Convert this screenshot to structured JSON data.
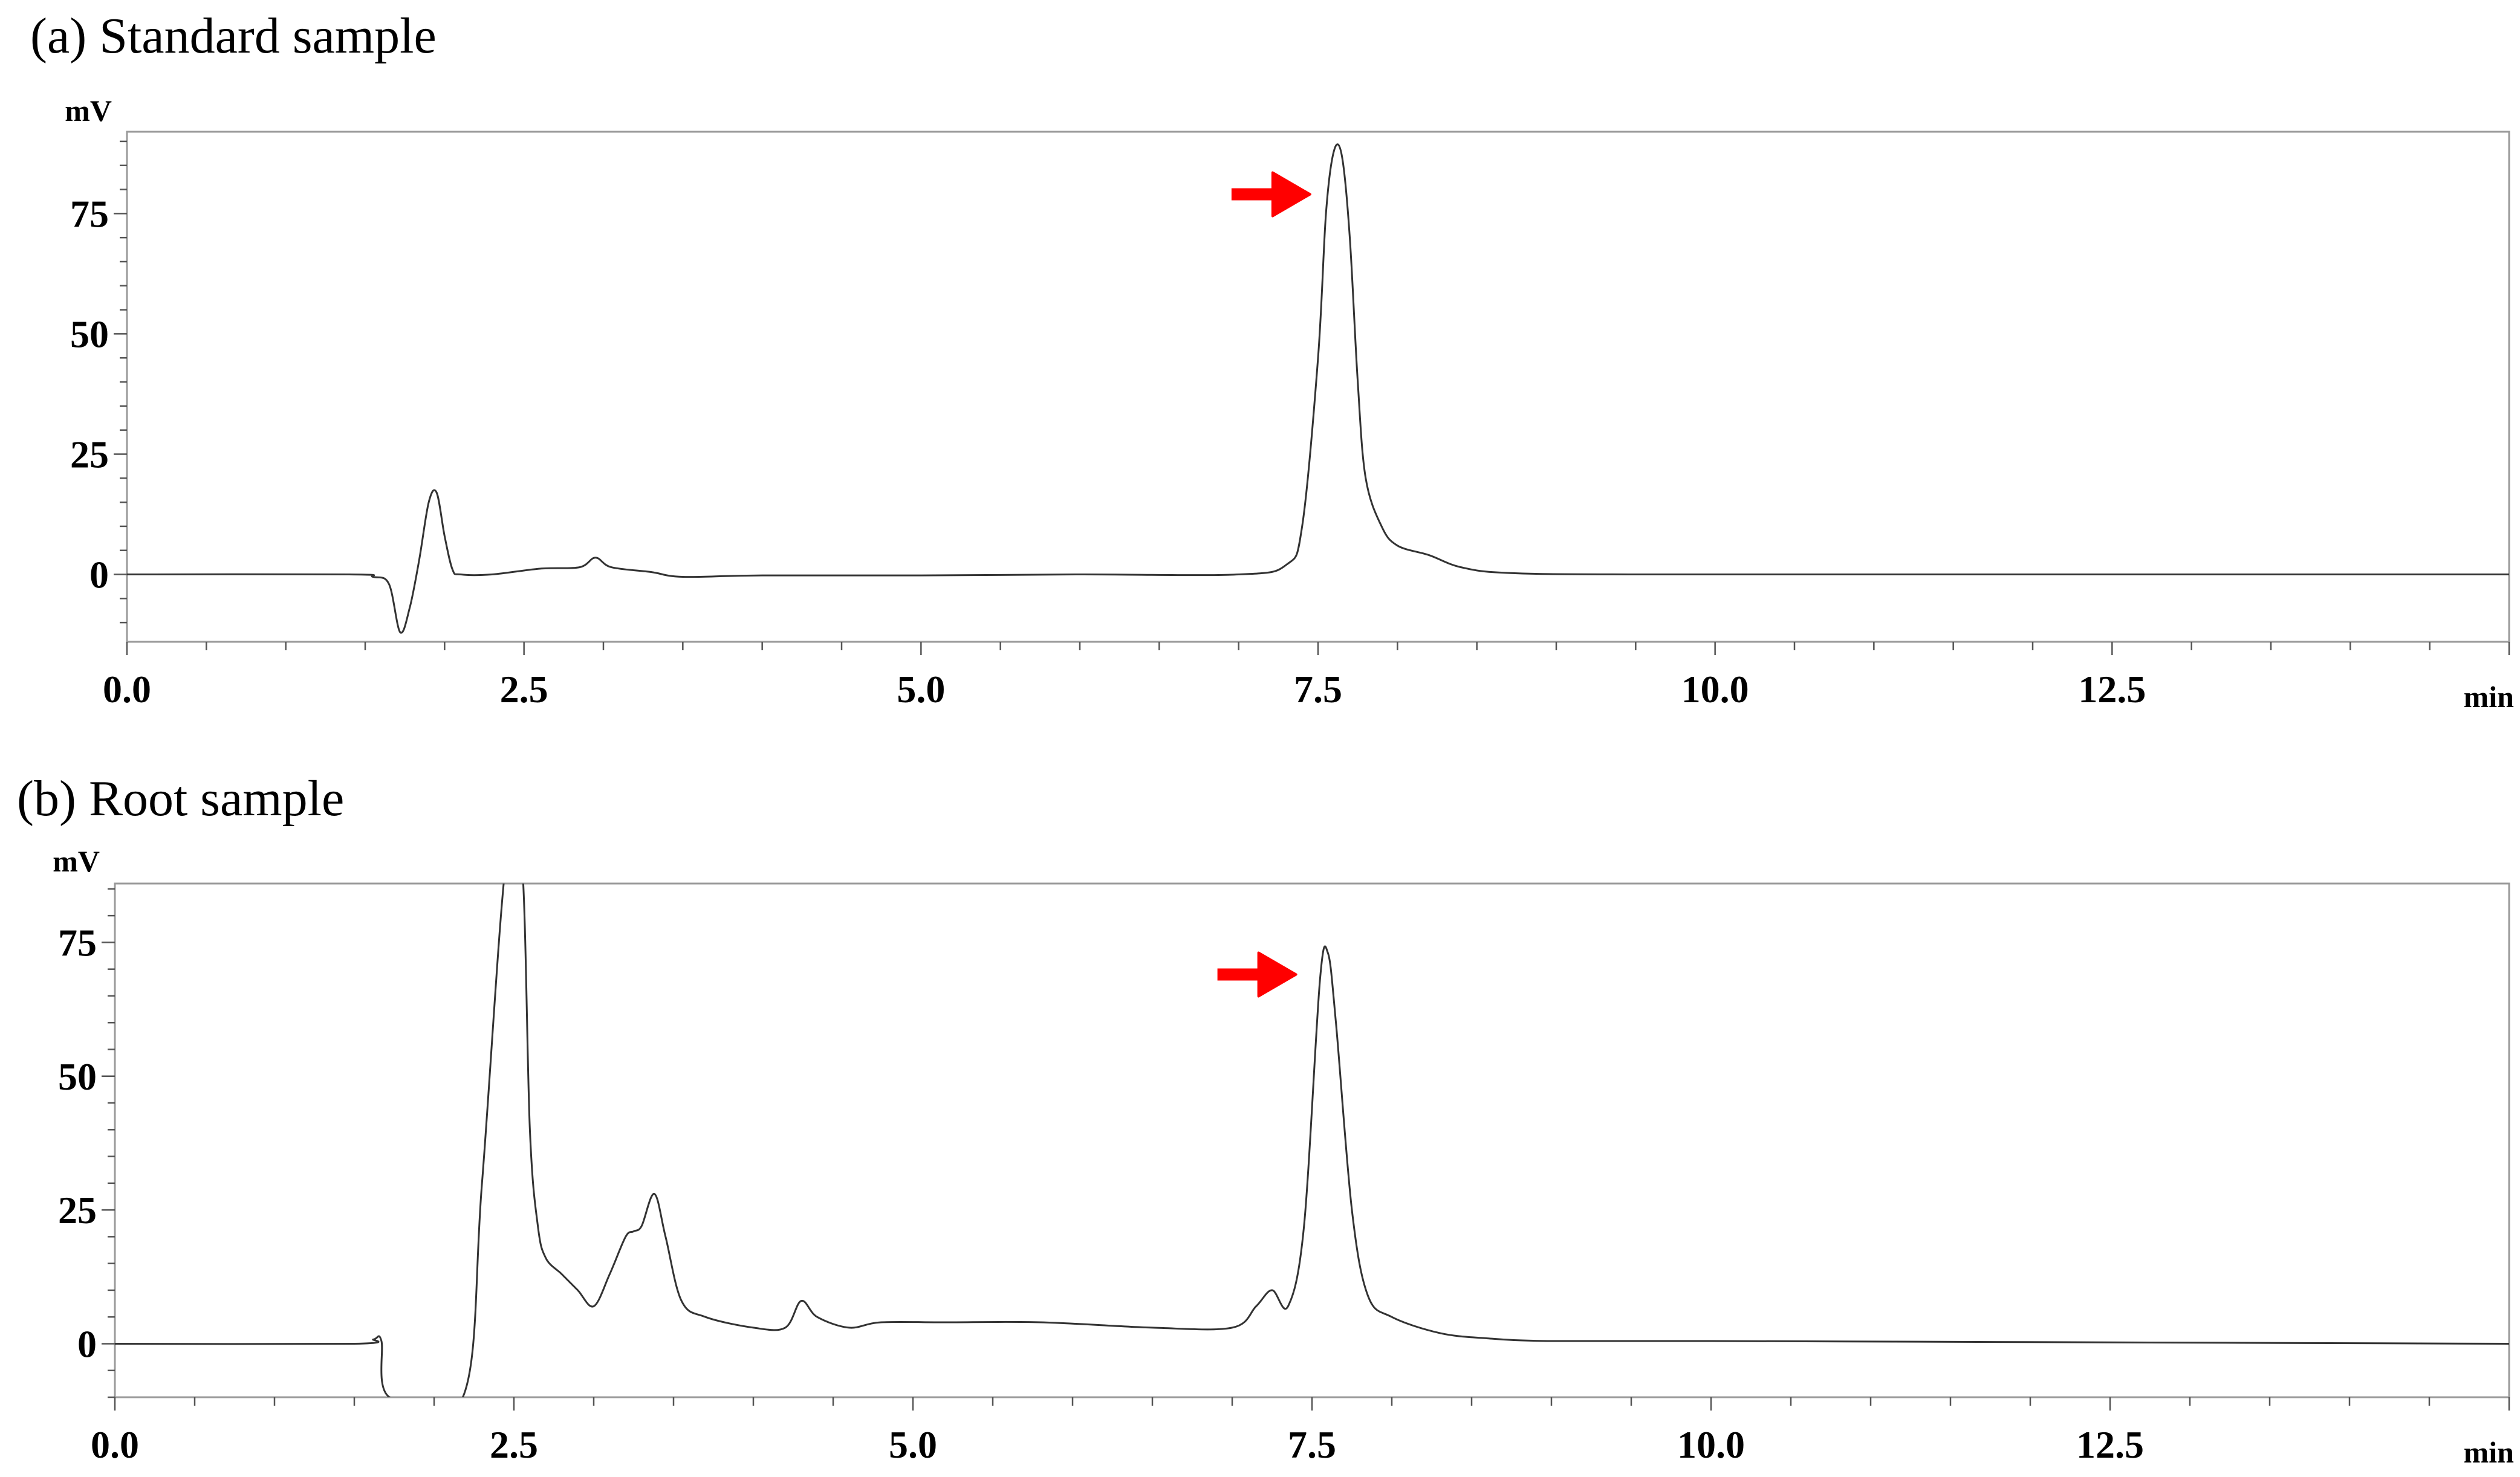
{
  "chart_data": [
    {
      "type": "line",
      "panel_title": "(a) Standard sample",
      "ylabel": "mV",
      "xlabel": "min",
      "xlim": [
        0,
        15
      ],
      "ylim": [
        -14,
        92
      ],
      "x_ticks": [
        0.0,
        2.5,
        5.0,
        7.5,
        10.0,
        12.5
      ],
      "x_tick_labels": [
        "0.0",
        "2.5",
        "5.0",
        "7.5",
        "10.0",
        "12.5"
      ],
      "y_ticks": [
        0,
        25,
        50,
        75
      ],
      "y_tick_labels": [
        "0",
        "25",
        "50",
        "75"
      ],
      "series_color": "#333333",
      "annotation": {
        "type": "arrow",
        "color": "#ff0000",
        "x": 7.45,
        "y": 79
      },
      "series": [
        {
          "x": [
            0,
            1.4,
            1.55,
            1.65,
            1.72,
            1.78,
            1.84,
            1.9,
            1.95,
            2.0,
            2.05,
            2.1,
            2.3,
            2.6,
            2.85,
            2.95,
            3.05,
            3.3,
            3.5,
            4.0,
            5.0,
            6.0,
            7.0,
            7.3,
            7.4,
            7.5,
            7.55,
            7.6,
            7.65,
            7.7,
            7.75,
            7.8,
            7.9,
            8.0,
            8.2,
            8.4,
            8.7,
            9.5,
            12,
            15
          ],
          "y": [
            0,
            0,
            -0.5,
            -2,
            -12,
            -7,
            3,
            15,
            17,
            8,
            1,
            0,
            0,
            1.2,
            1.5,
            3.5,
            1.5,
            0.5,
            -0.5,
            -0.2,
            -0.2,
            0,
            0,
            2,
            10,
            45,
            75,
            88,
            87,
            70,
            40,
            20,
            10,
            6,
            4,
            1.5,
            0.3,
            0,
            0,
            0
          ]
        }
      ]
    },
    {
      "type": "line",
      "panel_title": "(b) Root sample",
      "ylabel": "mV",
      "xlabel": "min",
      "xlim": [
        0,
        15
      ],
      "ylim": [
        -10,
        86
      ],
      "x_ticks": [
        0.0,
        2.5,
        5.0,
        7.5,
        10.0,
        12.5
      ],
      "x_tick_labels": [
        "0.0",
        "2.5",
        "5.0",
        "7.5",
        "10.0",
        "12.5"
      ],
      "y_ticks": [
        0,
        25,
        50,
        75
      ],
      "y_tick_labels": [
        "0",
        "25",
        "50",
        "75"
      ],
      "series_color": "#333333",
      "annotation": {
        "type": "arrow",
        "color": "#ff0000",
        "x": 7.4,
        "y": 69
      },
      "series": [
        {
          "x": [
            0,
            1.5,
            1.62,
            1.67,
            1.72,
            2.18,
            2.3,
            2.45,
            2.55,
            2.6,
            2.65,
            2.7,
            2.8,
            2.9,
            3.0,
            3.1,
            3.2,
            3.25,
            3.3,
            3.38,
            3.45,
            3.55,
            3.7,
            4.0,
            4.2,
            4.3,
            4.4,
            4.6,
            4.8,
            5.2,
            5.8,
            6.5,
            7.0,
            7.15,
            7.25,
            7.35,
            7.45,
            7.55,
            7.6,
            7.65,
            7.75,
            7.85,
            8.0,
            8.3,
            8.6,
            9.0,
            10,
            12,
            15
          ],
          "y": [
            0,
            0,
            0.8,
            0.5,
            -10,
            -10,
            30,
            90,
            90,
            40,
            22,
            16,
            13,
            10,
            7,
            13,
            20,
            21,
            22,
            28,
            20,
            8,
            5,
            3,
            3,
            8,
            5,
            3,
            4,
            4,
            4,
            3,
            3,
            7,
            10,
            7,
            22,
            68,
            73,
            60,
            25,
            9,
            5,
            2,
            1,
            0.5,
            0.5,
            0.3,
            0
          ]
        }
      ]
    }
  ]
}
